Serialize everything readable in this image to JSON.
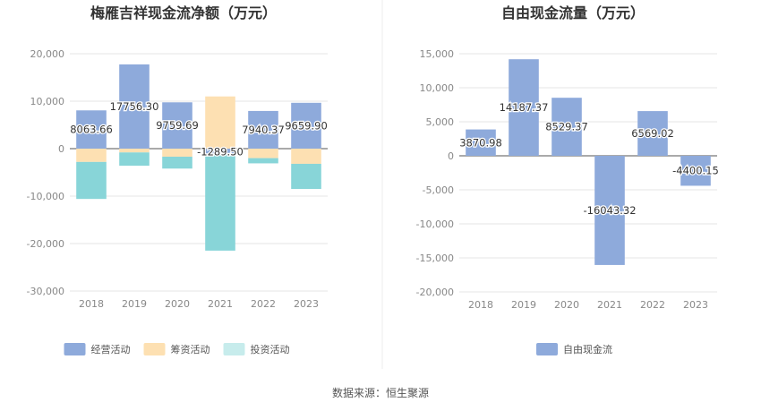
{
  "source": "数据来源：恒生聚源",
  "chart_data": [
    {
      "type": "bar",
      "stacked": true,
      "title": "梅雁吉祥现金流净额（万元）",
      "categories": [
        "2018",
        "2019",
        "2020",
        "2021",
        "2022",
        "2023"
      ],
      "ylim": [
        -30000,
        20000
      ],
      "yticks": [
        20000,
        10000,
        0,
        -10000,
        -20000,
        -30000
      ],
      "ytick_labels": [
        "20,000",
        "10,000",
        "0",
        "-10,000",
        "-20,000",
        "-30,000"
      ],
      "series": [
        {
          "name": "经营活动",
          "color": "#8eaadb",
          "values": [
            8063.66,
            17756.3,
            9759.69,
            -1289.5,
            7940.37,
            9659.9
          ]
        },
        {
          "name": "筹资活动",
          "color": "#fde0b2",
          "values": [
            -2800,
            -800,
            -1700,
            11000,
            -2000,
            -3200
          ]
        },
        {
          "name": "投资活动",
          "color": "#88d5d8",
          "values": [
            -7800,
            -2800,
            -2500,
            -20200,
            -1100,
            -5300
          ]
        }
      ],
      "data_labels": [
        "8063.66",
        "17756.30",
        "9759.69",
        "-1289.50",
        "7940.37",
        "9659.90"
      ],
      "legend": [
        {
          "name": "经营活动",
          "color": "#8eaadb"
        },
        {
          "name": "筹资活动",
          "color": "#fde0b2"
        },
        {
          "name": "投资活动",
          "color": "#c7ecec"
        }
      ]
    },
    {
      "type": "bar",
      "title": "自由现金流量（万元）",
      "categories": [
        "2018",
        "2019",
        "2020",
        "2021",
        "2022",
        "2023"
      ],
      "ylim": [
        -20000,
        15000
      ],
      "yticks": [
        15000,
        10000,
        5000,
        0,
        -5000,
        -10000,
        -15000,
        -20000
      ],
      "ytick_labels": [
        "15,000",
        "10,000",
        "5,000",
        "0",
        "-5,000",
        "-10,000",
        "-15,000",
        "-20,000"
      ],
      "series": [
        {
          "name": "自由现金流",
          "color": "#8eaadb",
          "values": [
            3870.98,
            14187.37,
            8529.37,
            -16043.32,
            6569.02,
            -4400.15
          ]
        }
      ],
      "data_labels": [
        "3870.98",
        "14187.37",
        "8529.37",
        "-16043.32",
        "6569.02",
        "-4400.15"
      ],
      "legend": [
        {
          "name": "自由现金流",
          "color": "#8eaadb"
        }
      ]
    }
  ]
}
